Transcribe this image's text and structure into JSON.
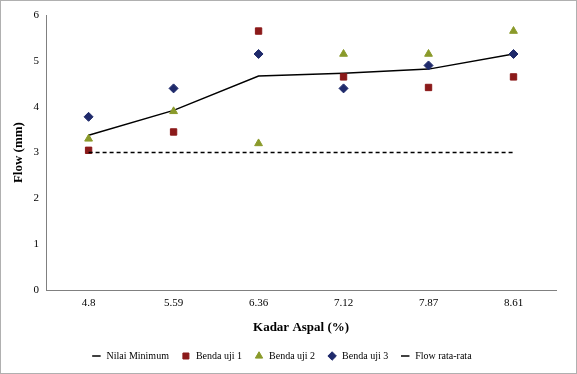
{
  "chart_data": {
    "type": "line",
    "x_label": "Kadar Aspal (%)",
    "y_label": "Flow (mm)",
    "categories": [
      "4.8",
      "5.59",
      "6.36",
      "7.12",
      "7.87",
      "8.61"
    ],
    "ylim": [
      0,
      6
    ],
    "yticks": [
      0,
      1,
      2,
      3,
      4,
      5,
      6
    ],
    "grid": false,
    "legend": "bottom",
    "series": [
      {
        "name": "Nilai Minimum",
        "type": "line",
        "line_style": "dashed",
        "marker": "none",
        "color": "#000000",
        "values": [
          3,
          3,
          3,
          3,
          3,
          3
        ]
      },
      {
        "name": "Benda uji 1",
        "type": "scatter",
        "line_style": "none",
        "marker": "square",
        "color": "#8b1a1a",
        "values": [
          3.05,
          3.45,
          5.65,
          4.65,
          4.42,
          4.65
        ]
      },
      {
        "name": "Benda uji 2",
        "type": "scatter",
        "line_style": "none",
        "marker": "triangle",
        "color": "#8a9a2a",
        "values": [
          3.3,
          3.9,
          3.2,
          5.15,
          5.15,
          5.65
        ]
      },
      {
        "name": "Benda uji 3",
        "type": "scatter",
        "line_style": "none",
        "marker": "diamond",
        "color": "#1f2a6b",
        "values": [
          3.78,
          4.4,
          5.15,
          4.4,
          4.9,
          5.15
        ]
      },
      {
        "name": "Flow rata-rata",
        "type": "line",
        "line_style": "solid",
        "marker": "none",
        "color": "#000000",
        "values": [
          3.38,
          3.92,
          4.67,
          4.73,
          4.82,
          5.15
        ]
      }
    ]
  }
}
